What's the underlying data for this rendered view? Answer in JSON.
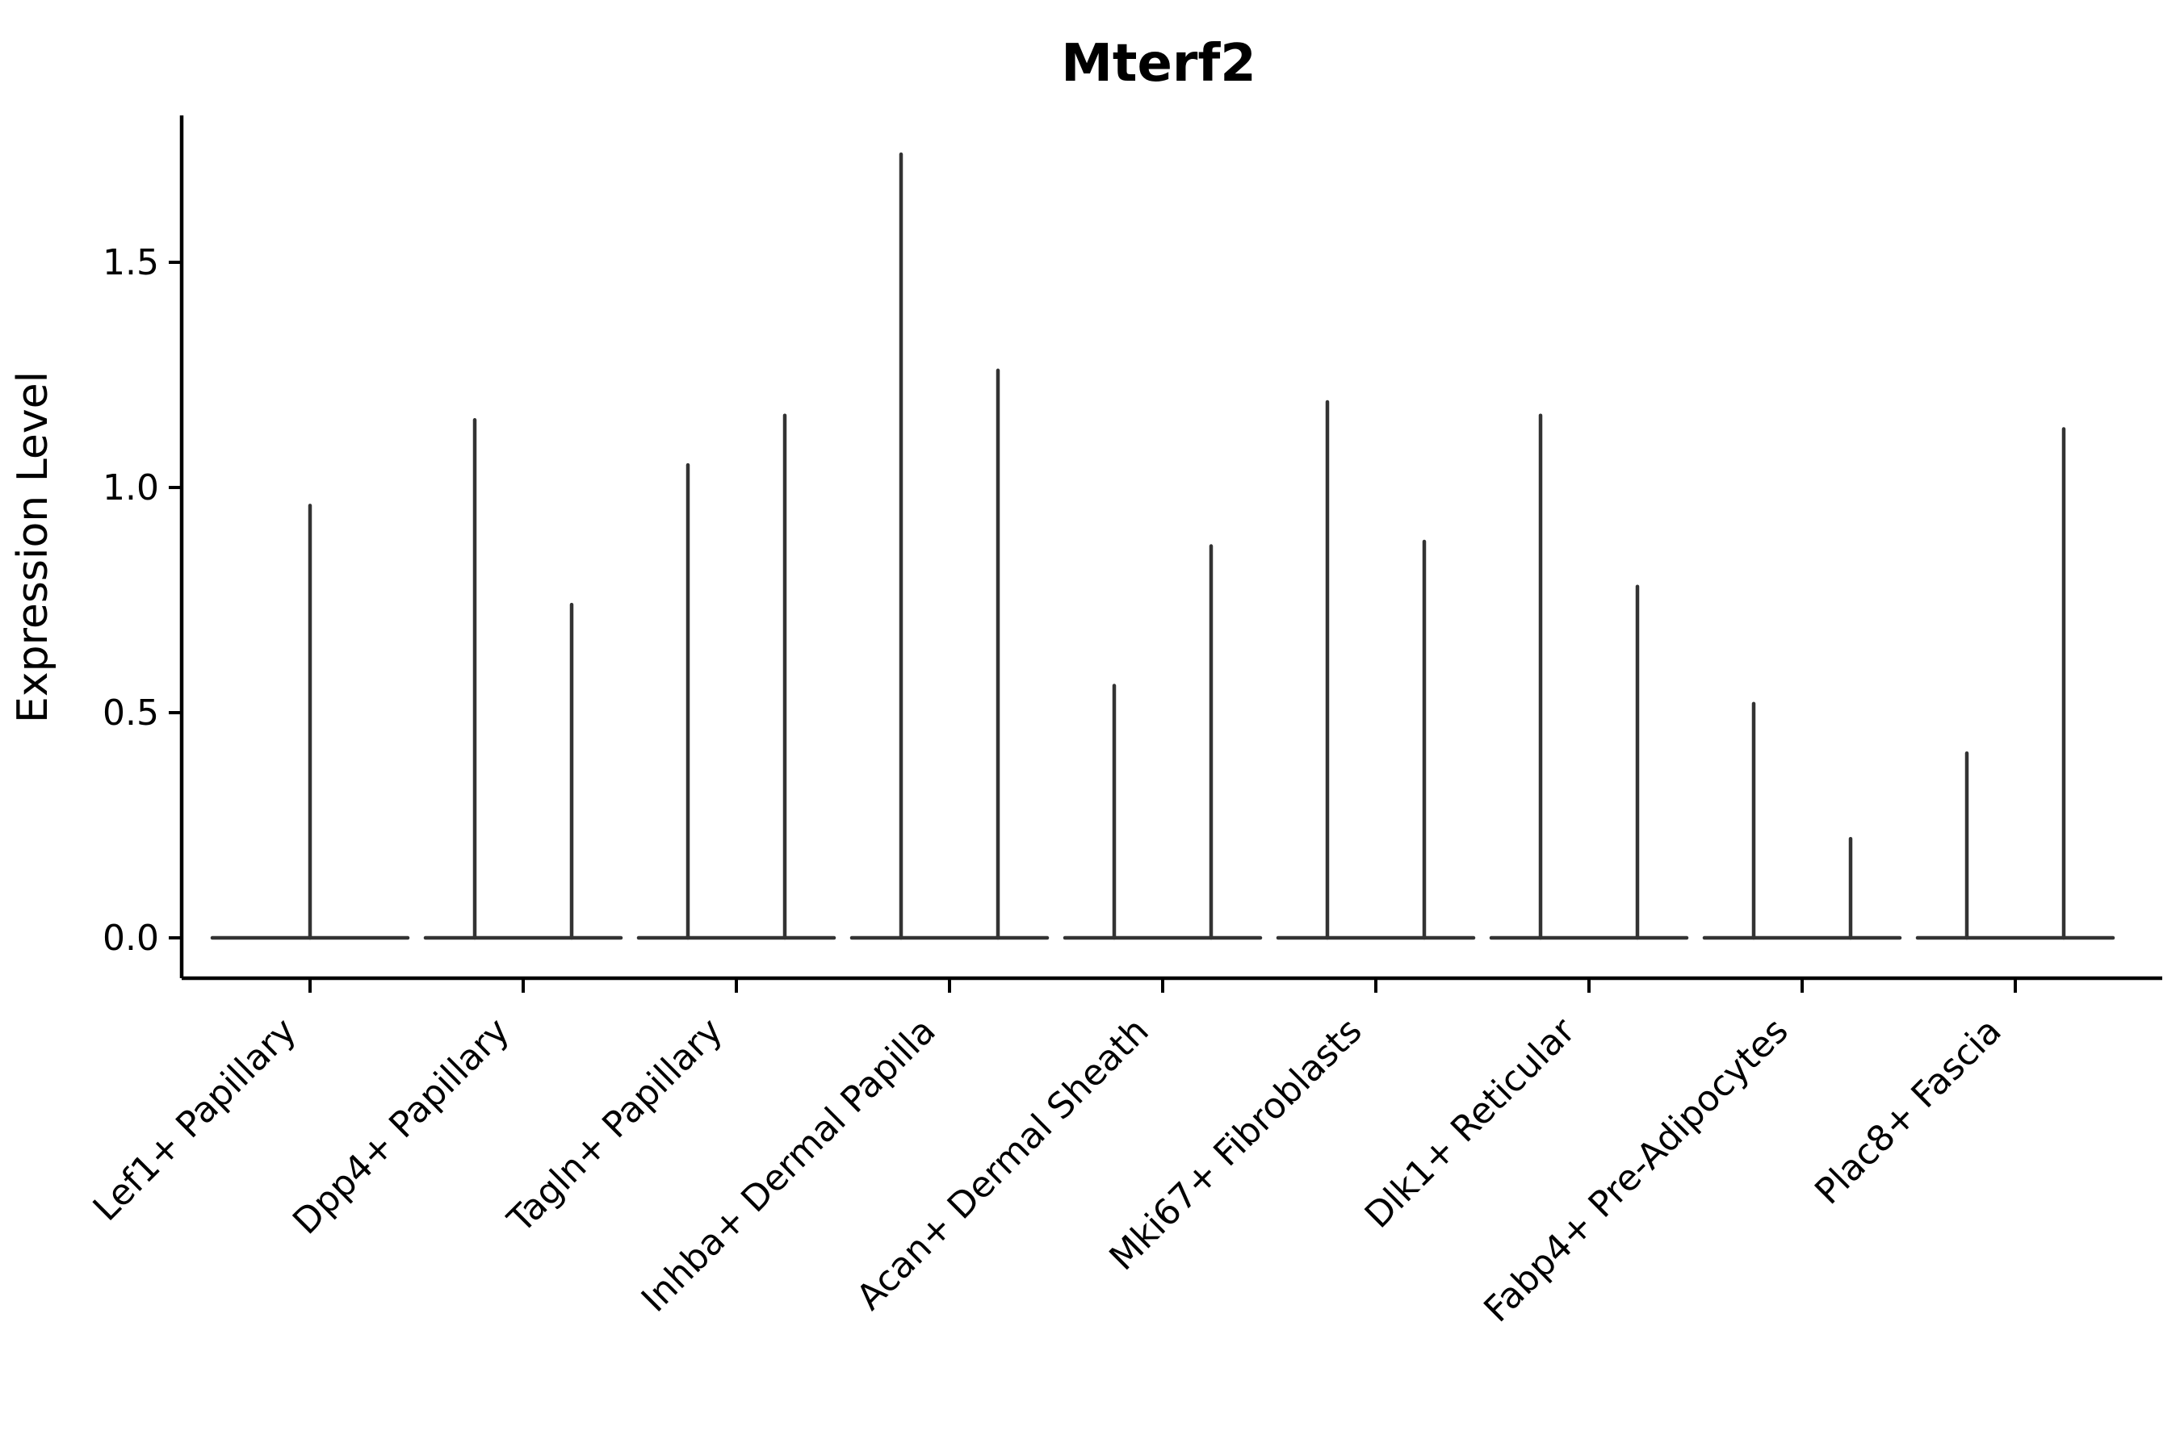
{
  "page": {
    "background": "#ffffff"
  },
  "chart_data": {
    "type": "violin",
    "title": "Mterf2",
    "ylabel": "Expression Level",
    "xlabel": "",
    "ytick_labels": [
      "0.0",
      "0.5",
      "1.0",
      "1.5"
    ],
    "ytick_values": [
      0.0,
      0.5,
      1.0,
      1.5
    ],
    "ylim": [
      -0.09,
      1.82
    ],
    "grid": false,
    "legend": false,
    "categories": [
      "Lef1+ Papillary",
      "Dpp4+ Papillary",
      "Tagln+ Papillary",
      "Inhba+ Dermal Papilla",
      "Acan+ Dermal Sheath",
      "Mki67+ Fibroblasts",
      "Dlk1+ Reticular",
      "Fabp4+ Pre-Adipocytes",
      "Plac8+ Fascia"
    ],
    "series": [
      {
        "category": "Lef1+ Papillary",
        "spike_maxima": [
          0.96
        ]
      },
      {
        "category": "Dpp4+ Papillary",
        "spike_maxima": [
          1.15,
          0.74
        ]
      },
      {
        "category": "Tagln+ Papillary",
        "spike_maxima": [
          1.05,
          1.16
        ]
      },
      {
        "category": "Inhba+ Dermal Papilla",
        "spike_maxima": [
          1.74,
          1.26
        ]
      },
      {
        "category": "Acan+ Dermal Sheath",
        "spike_maxima": [
          0.56,
          0.87
        ]
      },
      {
        "category": "Mki67+ Fibroblasts",
        "spike_maxima": [
          1.19,
          0.88
        ]
      },
      {
        "category": "Dlk1+ Reticular",
        "spike_maxima": [
          1.16,
          0.78
        ]
      },
      {
        "category": "Fabp4+ Pre-Adipocytes",
        "spike_maxima": [
          0.52,
          0.22
        ]
      },
      {
        "category": "Plac8+ Fascia",
        "spike_maxima": [
          0.41,
          1.13
        ]
      }
    ],
    "colors": {
      "violin_line": "#333333",
      "axis": "#000000",
      "text": "#000000",
      "background": "#ffffff"
    }
  }
}
